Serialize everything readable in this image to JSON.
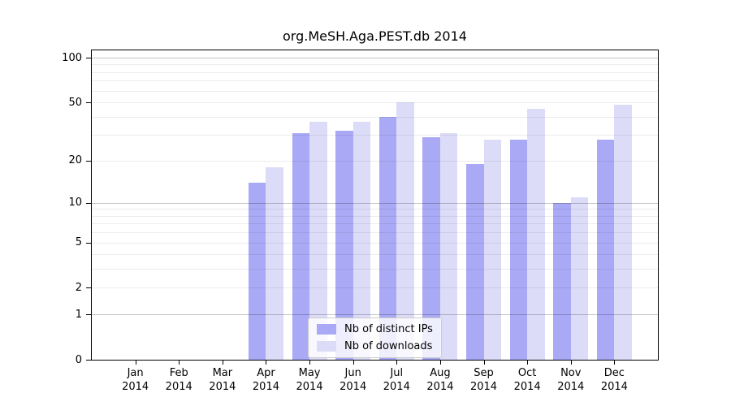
{
  "chart_data": {
    "type": "bar",
    "title": "org.MeSH.Aga.PEST.db 2014",
    "categories": [
      "Jan",
      "Feb",
      "Mar",
      "Apr",
      "May",
      "Jun",
      "Jul",
      "Aug",
      "Sep",
      "Oct",
      "Nov",
      "Dec"
    ],
    "xtick_year": "2014",
    "series": [
      {
        "name": "Nb of distinct IPs",
        "color": "#a9a9f5",
        "values": [
          0,
          0,
          0,
          14,
          31,
          32,
          40,
          29,
          19,
          28,
          10,
          28
        ]
      },
      {
        "name": "Nb of downloads",
        "color": "#dcdcf8",
        "values": [
          0,
          0,
          0,
          18,
          37,
          37,
          50,
          31,
          28,
          45,
          11,
          48
        ]
      }
    ],
    "xlabel": "",
    "ylabel": "",
    "yscale": "log1p",
    "ylim": [
      0,
      112
    ],
    "ytick_labels": [
      0,
      1,
      2,
      5,
      10,
      20,
      50,
      100
    ],
    "grid_major": [
      1,
      10,
      100
    ],
    "grid_minor": [
      2,
      3,
      4,
      5,
      6,
      7,
      8,
      9,
      20,
      30,
      40,
      50,
      60,
      70,
      80,
      90
    ],
    "grid": "horizontal",
    "legend_position": "lower center"
  }
}
